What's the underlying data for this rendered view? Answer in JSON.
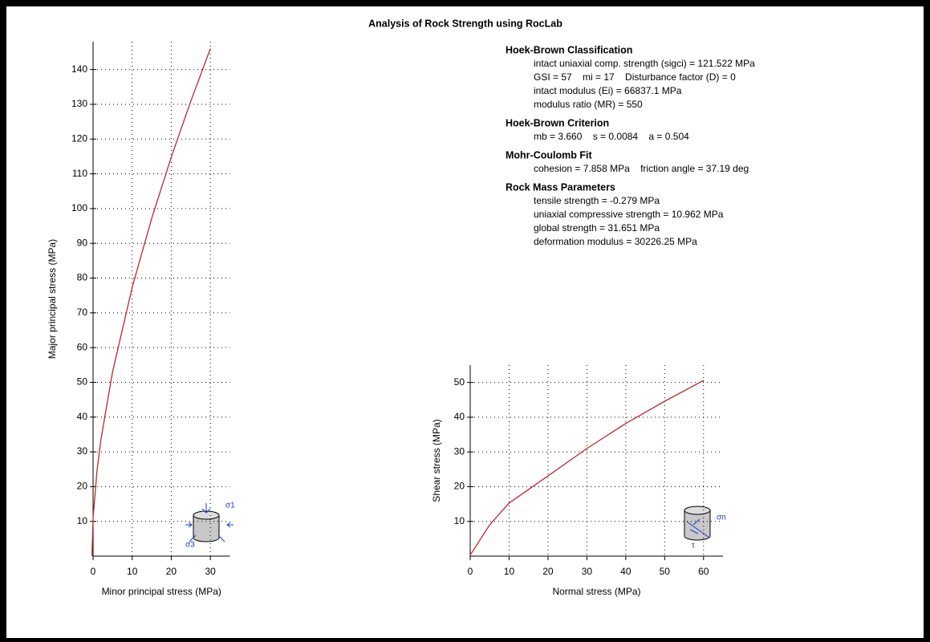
{
  "title": "Analysis of Rock Strength using RocLab",
  "panel": [
    {
      "heading": "Hoek-Brown Classification",
      "lines": [
        "intact uniaxial comp. strength (sigci) = 121.522 MPa",
        "GSI = 57    mi = 17    Disturbance factor (D) = 0",
        "intact modulus (Ei) = 66837.1 MPa",
        "modulus ratio (MR) = 550"
      ]
    },
    {
      "heading": "Hoek-Brown Criterion",
      "lines": [
        "mb = 3.660    s = 0.0084    a = 0.504"
      ]
    },
    {
      "heading": "Mohr-Coulomb Fit",
      "lines": [
        "cohesion = 7.858 MPa    friction angle = 37.19 deg"
      ]
    },
    {
      "heading": "Rock Mass Parameters",
      "lines": [
        "tensile strength = -0.279 MPa",
        "uniaxial compressive strength = 10.962 MPa",
        "global strength = 31.651 MPa",
        "deformation modulus = 30226.25 MPa"
      ]
    }
  ],
  "chart_data": [
    {
      "type": "line",
      "x_label": "Minor principal stress (MPa)",
      "y_label": "Major principal stress (MPa)",
      "x": [
        -0.28,
        0,
        1,
        2,
        5,
        10,
        15,
        20,
        25,
        30
      ],
      "series": [
        {
          "color": "#c0282d",
          "values": [
            0,
            10.96,
            24.5,
            33.5,
            53.1,
            77.3,
            97.2,
            114.8,
            130.9,
            146
          ]
        }
      ],
      "xlim": [
        0,
        35
      ],
      "ylim": [
        0,
        148
      ],
      "xticks": [
        0,
        10,
        20,
        30
      ],
      "yticks": [
        10,
        20,
        30,
        40,
        50,
        60,
        70,
        80,
        90,
        100,
        110,
        120,
        130,
        140
      ],
      "grid": true,
      "icon_labels": [
        "σ1",
        "σ3"
      ]
    },
    {
      "type": "line",
      "x_label": "Normal stress (MPa)",
      "y_label": "Shear stress (MPa)",
      "x": [
        0,
        5,
        10,
        20,
        30,
        40,
        50,
        60
      ],
      "series": [
        {
          "color": "#c0282d",
          "values": [
            0.3,
            9,
            15.3,
            23.1,
            31,
            38.2,
            44.6,
            50.6
          ]
        }
      ],
      "xlim": [
        0,
        65
      ],
      "ylim": [
        0,
        55
      ],
      "xticks": [
        0,
        10,
        20,
        30,
        40,
        50,
        60
      ],
      "yticks": [
        10,
        20,
        30,
        40,
        50
      ],
      "grid": true,
      "icon_labels": [
        "σn",
        "τ"
      ]
    }
  ]
}
